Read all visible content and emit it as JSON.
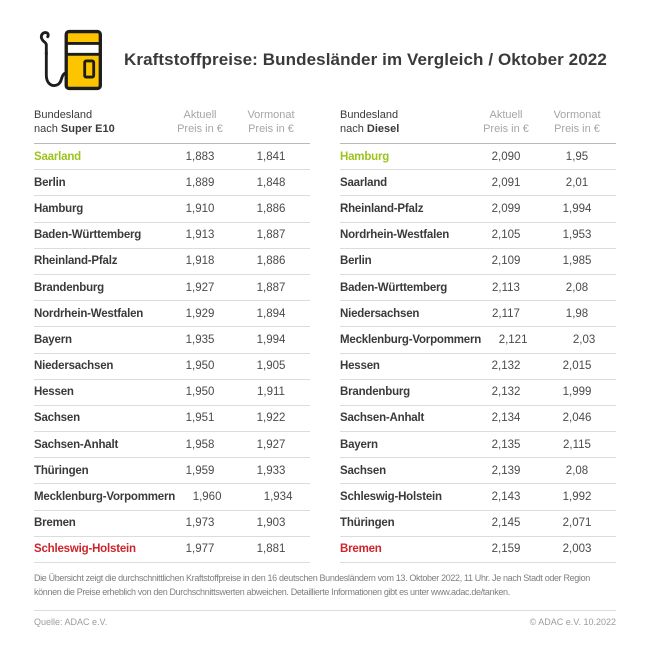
{
  "page": {
    "title": "Kraftstoffpreise: Bundesländer im Vergleich / Oktober 2022"
  },
  "colors": {
    "accent_yellow": "#FDC400",
    "icon_outline": "#1d1d1b",
    "cheapest_green": "#9cc31e",
    "most_expensive_red": "#ce242b",
    "dark_text": "#3a3a3a"
  },
  "tables": [
    {
      "header": {
        "col1_line1": "Bundesland",
        "col1_prefix": "nach ",
        "col1_fuel": "Super E10",
        "col2_line1": "Aktuell",
        "col2_line2": "Preis in €",
        "col3_line1": "Vormonat",
        "col3_line2": "Preis in €"
      },
      "rows": [
        {
          "state": "Saarland",
          "current": "1,883",
          "previous": "1,841",
          "highlight": "cheapest"
        },
        {
          "state": "Berlin",
          "current": "1,889",
          "previous": "1,848",
          "highlight": ""
        },
        {
          "state": "Hamburg",
          "current": "1,910",
          "previous": "1,886",
          "highlight": ""
        },
        {
          "state": "Baden-Württemberg",
          "current": "1,913",
          "previous": "1,887",
          "highlight": ""
        },
        {
          "state": "Rheinland-Pfalz",
          "current": "1,918",
          "previous": "1,886",
          "highlight": ""
        },
        {
          "state": "Brandenburg",
          "current": "1,927",
          "previous": "1,887",
          "highlight": ""
        },
        {
          "state": "Nordrhein-Westfalen",
          "current": "1,929",
          "previous": "1,894",
          "highlight": ""
        },
        {
          "state": "Bayern",
          "current": "1,935",
          "previous": "1,994",
          "highlight": ""
        },
        {
          "state": "Niedersachsen",
          "current": "1,950",
          "previous": "1,905",
          "highlight": ""
        },
        {
          "state": "Hessen",
          "current": "1,950",
          "previous": "1,911",
          "highlight": ""
        },
        {
          "state": "Sachsen",
          "current": "1,951",
          "previous": "1,922",
          "highlight": ""
        },
        {
          "state": "Sachsen-Anhalt",
          "current": "1,958",
          "previous": "1,927",
          "highlight": ""
        },
        {
          "state": "Thüringen",
          "current": "1,959",
          "previous": "1,933",
          "highlight": ""
        },
        {
          "state": "Mecklenburg-Vorpommern",
          "current": "1,960",
          "previous": "1,934",
          "highlight": ""
        },
        {
          "state": "Bremen",
          "current": "1,973",
          "previous": "1,903",
          "highlight": ""
        },
        {
          "state": "Schleswig-Holstein",
          "current": "1,977",
          "previous": "1,881",
          "highlight": "most_expensive"
        }
      ]
    },
    {
      "header": {
        "col1_line1": "Bundesland",
        "col1_prefix": "nach ",
        "col1_fuel": "Diesel",
        "col2_line1": "Aktuell",
        "col2_line2": "Preis in €",
        "col3_line1": "Vormonat",
        "col3_line2": "Preis in €"
      },
      "rows": [
        {
          "state": "Hamburg",
          "current": "2,090",
          "previous": "1,95",
          "highlight": "cheapest"
        },
        {
          "state": "Saarland",
          "current": "2,091",
          "previous": "2,01",
          "highlight": ""
        },
        {
          "state": "Rheinland-Pfalz",
          "current": "2,099",
          "previous": "1,994",
          "highlight": ""
        },
        {
          "state": "Nordrhein-Westfalen",
          "current": "2,105",
          "previous": "1,953",
          "highlight": ""
        },
        {
          "state": "Berlin",
          "current": "2,109",
          "previous": "1,985",
          "highlight": ""
        },
        {
          "state": "Baden-Württemberg",
          "current": "2,113",
          "previous": "2,08",
          "highlight": ""
        },
        {
          "state": "Niedersachsen",
          "current": "2,117",
          "previous": "1,98",
          "highlight": ""
        },
        {
          "state": "Mecklenburg-Vorpommern",
          "current": "2,121",
          "previous": "2,03",
          "highlight": ""
        },
        {
          "state": "Hessen",
          "current": "2,132",
          "previous": "2,015",
          "highlight": ""
        },
        {
          "state": "Brandenburg",
          "current": "2,132",
          "previous": "1,999",
          "highlight": ""
        },
        {
          "state": "Sachsen-Anhalt",
          "current": "2,134",
          "previous": "2,046",
          "highlight": ""
        },
        {
          "state": "Bayern",
          "current": "2,135",
          "previous": "2,115",
          "highlight": ""
        },
        {
          "state": "Sachsen",
          "current": "2,139",
          "previous": "2,08",
          "highlight": ""
        },
        {
          "state": "Schleswig-Holstein",
          "current": "2,143",
          "previous": "1,992",
          "highlight": ""
        },
        {
          "state": "Thüringen",
          "current": "2,145",
          "previous": "2,071",
          "highlight": ""
        },
        {
          "state": "Bremen",
          "current": "2,159",
          "previous": "2,003",
          "highlight": "most_expensive"
        }
      ]
    }
  ],
  "chart_data": [
    {
      "type": "table",
      "title": "Bundesland nach Super E10",
      "columns": [
        "Bundesland",
        "Aktuell Preis in €",
        "Vormonat Preis in €"
      ],
      "rows": [
        [
          "Saarland",
          1.883,
          1.841
        ],
        [
          "Berlin",
          1.889,
          1.848
        ],
        [
          "Hamburg",
          1.91,
          1.886
        ],
        [
          "Baden-Württemberg",
          1.913,
          1.887
        ],
        [
          "Rheinland-Pfalz",
          1.918,
          1.886
        ],
        [
          "Brandenburg",
          1.927,
          1.887
        ],
        [
          "Nordrhein-Westfalen",
          1.929,
          1.894
        ],
        [
          "Bayern",
          1.935,
          1.994
        ],
        [
          "Niedersachsen",
          1.95,
          1.905
        ],
        [
          "Hessen",
          1.95,
          1.911
        ],
        [
          "Sachsen",
          1.951,
          1.922
        ],
        [
          "Sachsen-Anhalt",
          1.958,
          1.927
        ],
        [
          "Thüringen",
          1.959,
          1.933
        ],
        [
          "Mecklenburg-Vorpommern",
          1.96,
          1.934
        ],
        [
          "Bremen",
          1.973,
          1.903
        ],
        [
          "Schleswig-Holstein",
          1.977,
          1.881
        ]
      ],
      "highlights": {
        "cheapest": "Saarland",
        "most_expensive": "Schleswig-Holstein"
      }
    },
    {
      "type": "table",
      "title": "Bundesland nach Diesel",
      "columns": [
        "Bundesland",
        "Aktuell Preis in €",
        "Vormonat Preis in €"
      ],
      "rows": [
        [
          "Hamburg",
          2.09,
          1.95
        ],
        [
          "Saarland",
          2.091,
          2.01
        ],
        [
          "Rheinland-Pfalz",
          2.099,
          1.994
        ],
        [
          "Nordrhein-Westfalen",
          2.105,
          1.953
        ],
        [
          "Berlin",
          2.109,
          1.985
        ],
        [
          "Baden-Württemberg",
          2.113,
          2.08
        ],
        [
          "Niedersachsen",
          2.117,
          1.98
        ],
        [
          "Mecklenburg-Vorpommern",
          2.121,
          2.03
        ],
        [
          "Hessen",
          2.132,
          2.015
        ],
        [
          "Brandenburg",
          2.132,
          1.999
        ],
        [
          "Sachsen-Anhalt",
          2.134,
          2.046
        ],
        [
          "Bayern",
          2.135,
          2.115
        ],
        [
          "Sachsen",
          2.139,
          2.08
        ],
        [
          "Schleswig-Holstein",
          2.143,
          1.992
        ],
        [
          "Thüringen",
          2.145,
          2.071
        ],
        [
          "Bremen",
          2.159,
          2.003
        ]
      ],
      "highlights": {
        "cheapest": "Hamburg",
        "most_expensive": "Bremen"
      }
    }
  ],
  "footnote": {
    "text": "Die Übersicht zeigt die durchschnittlichen Kraftstoffpreise in den 16 deutschen Bundesländern vom 13. Oktober 2022, 11 Uhr. Je nach Stadt oder Region können die Preise erheblich von den Durchschnittswerten abweichen. Detaillierte Informationen gibt es unter www.adac.de/tanken."
  },
  "footer": {
    "source": "Quelle: ADAC e.V.",
    "copyright": "© ADAC e.V. 10.2022"
  }
}
